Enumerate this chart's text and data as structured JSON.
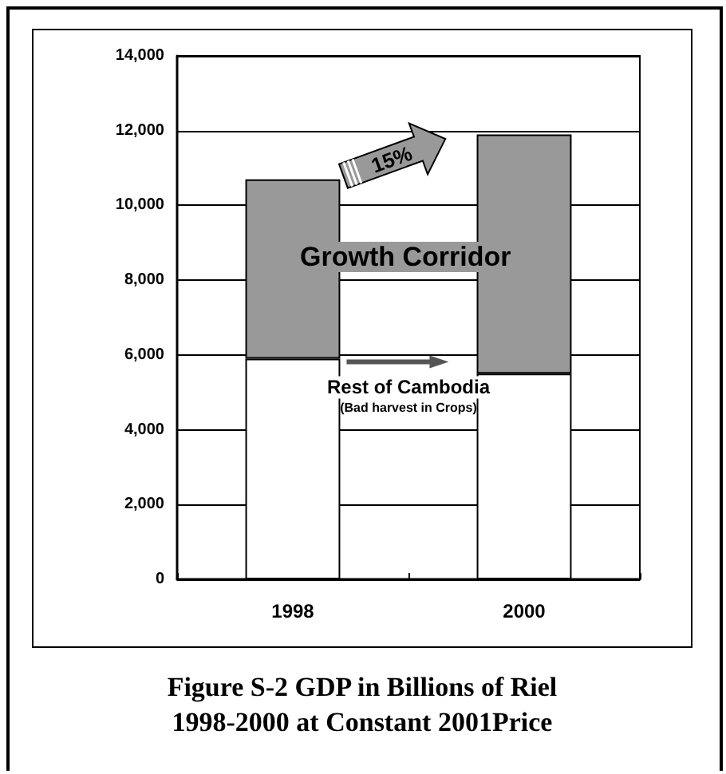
{
  "chart_data": {
    "type": "bar",
    "title": "Figure S-2 GDP in Billions of Riel\n1998-2000 at Constant 2001Price",
    "categories": [
      "1998",
      "2000"
    ],
    "stacked": true,
    "series": [
      {
        "name": "Rest of Cambodia",
        "color": "#ffffff",
        "values": [
          5900,
          5500
        ]
      },
      {
        "name": "Growth Corridor",
        "color": "#999999",
        "values": [
          4800,
          6400
        ]
      }
    ],
    "ylim": [
      0,
      14000
    ],
    "yticks": [
      0,
      {
        "value": 2000,
        "label": "2,000"
      },
      {
        "value": 4000,
        "label": "4,000"
      },
      {
        "value": 6000,
        "label": "6,000"
      },
      {
        "value": 8000,
        "label": "8,000"
      },
      {
        "value": 10000,
        "label": "10,000"
      },
      {
        "value": 12000,
        "label": "12,000"
      },
      {
        "value": 14000,
        "label": "14,000"
      }
    ],
    "grid": "y",
    "legend": false,
    "annotations": [
      "(Bad harvest in Crops)",
      "15%"
    ]
  }
}
